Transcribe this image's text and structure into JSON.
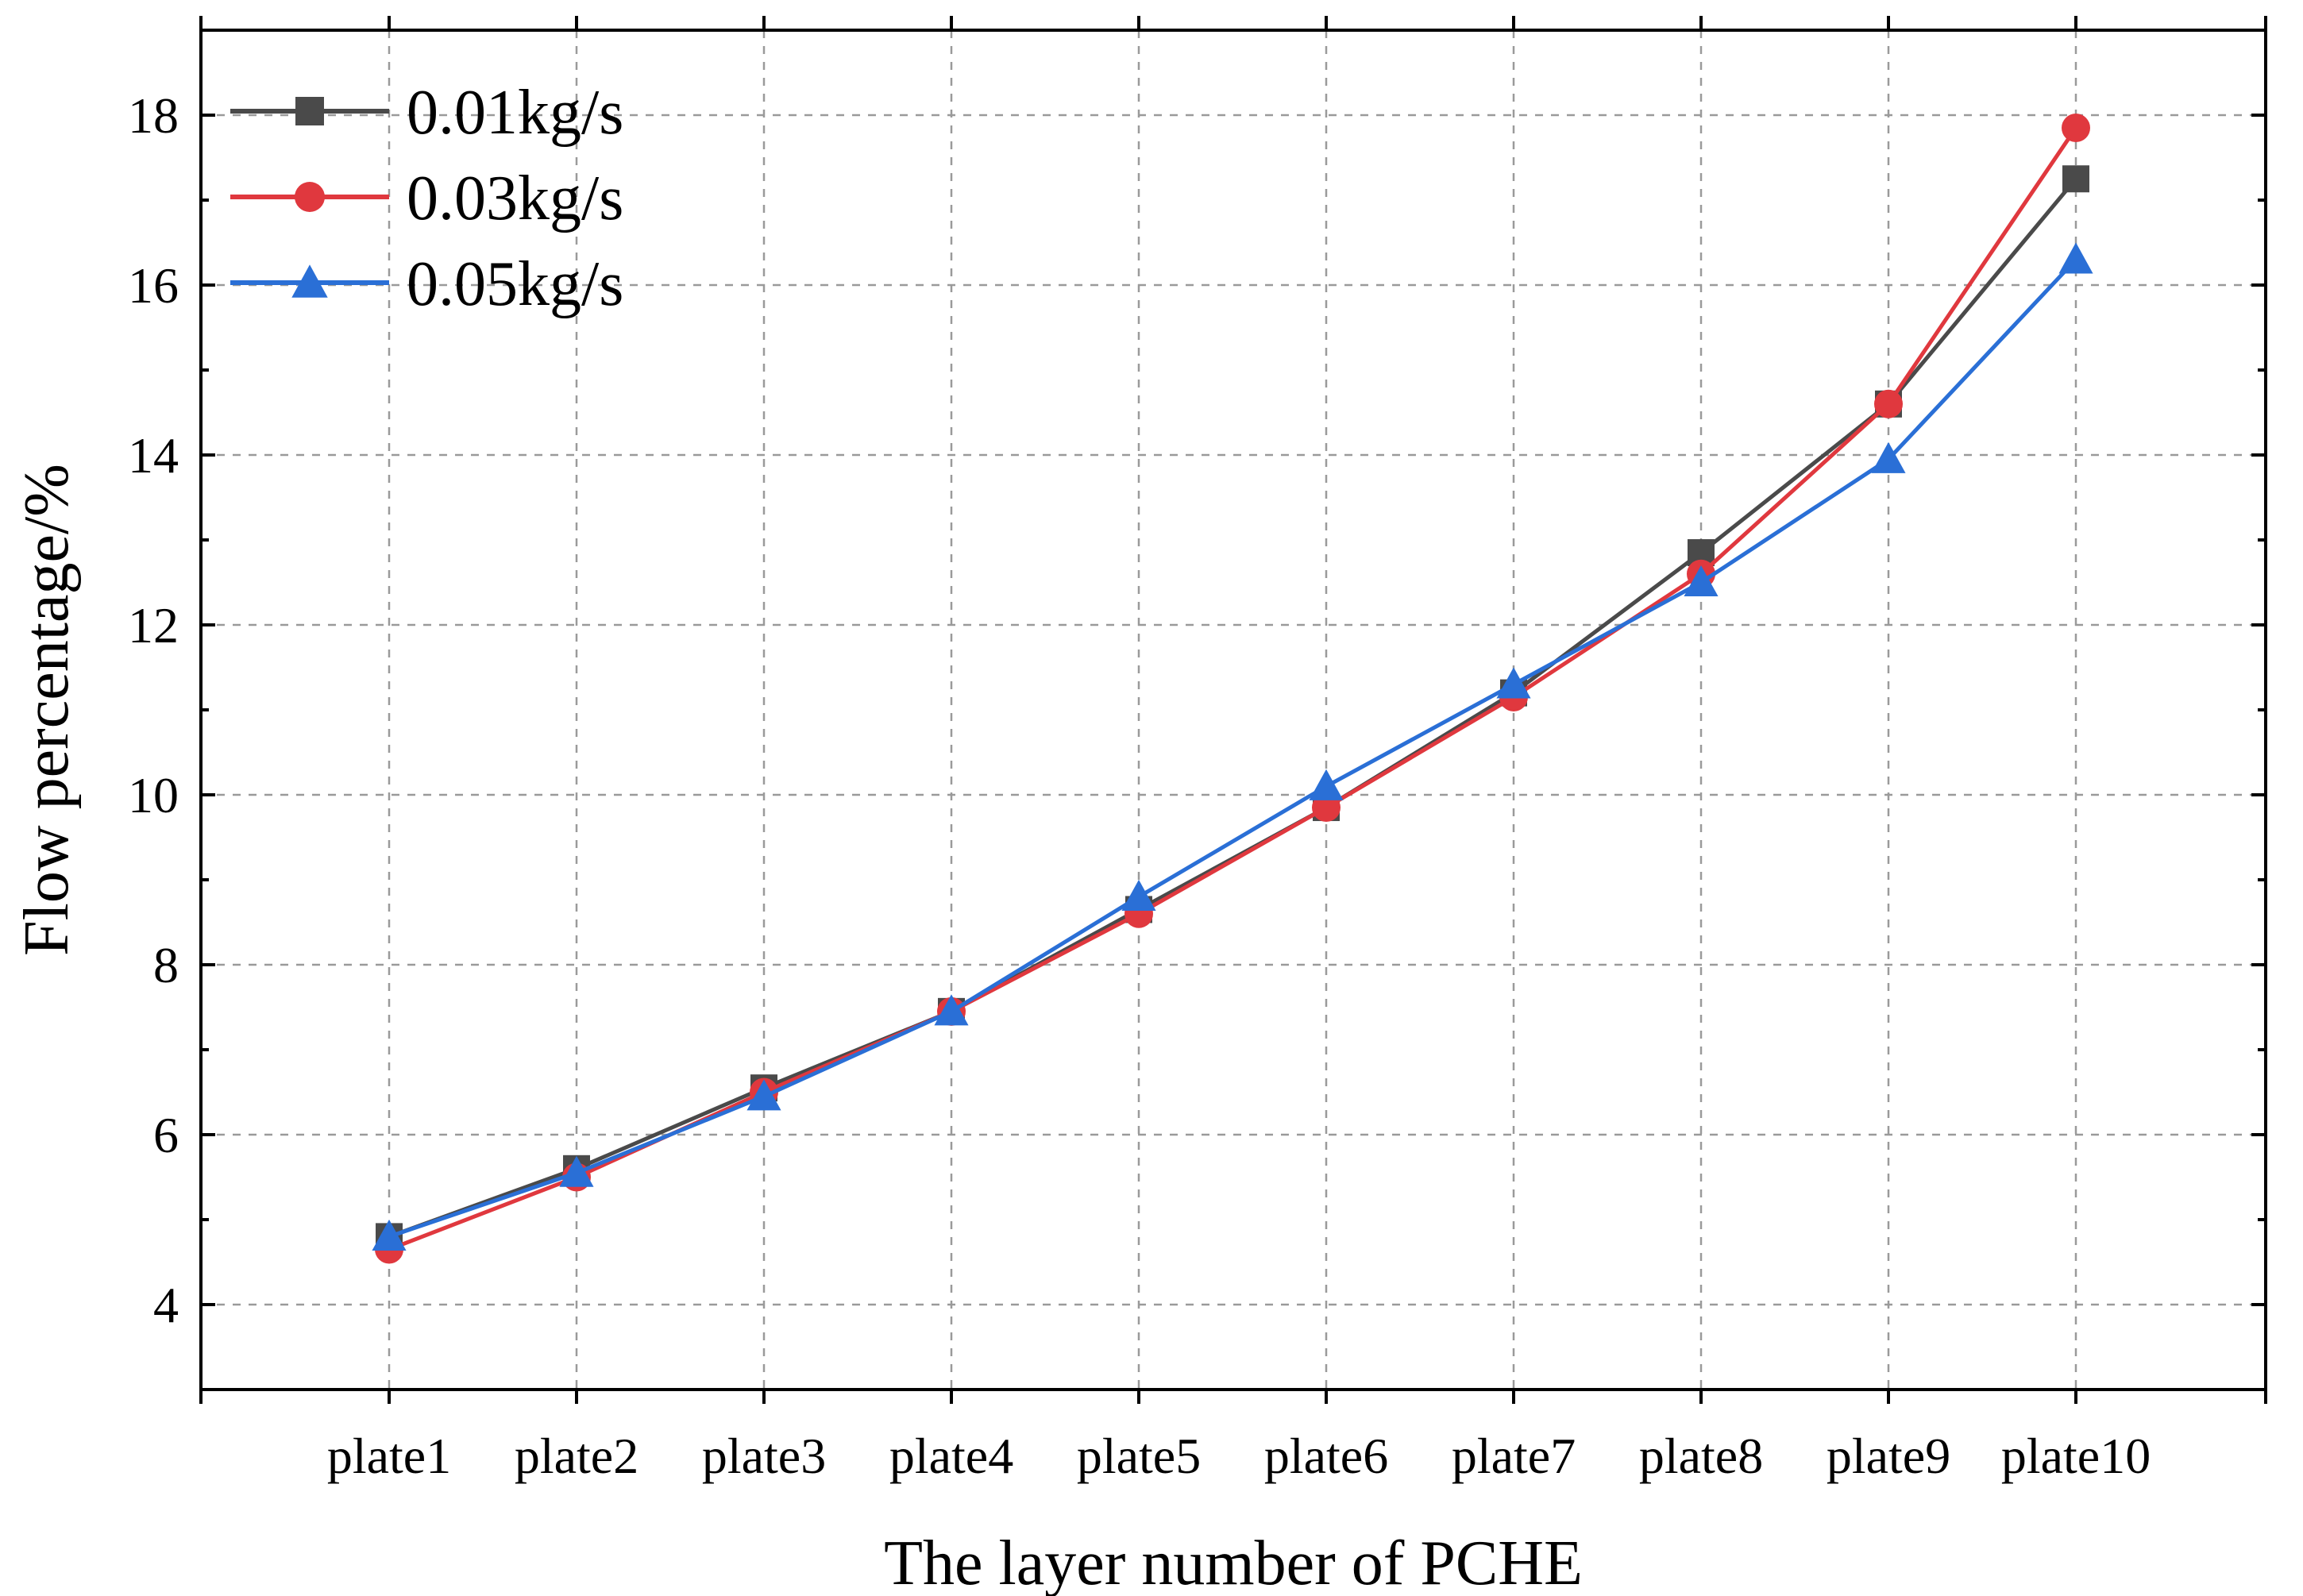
{
  "chart_data": {
    "type": "line",
    "title": "",
    "xlabel": "The layer number of PCHE",
    "ylabel": "Flow percentage/%",
    "categories": [
      "plate1",
      "plate2",
      "plate3",
      "plate4",
      "plate5",
      "plate6",
      "plate7",
      "plate8",
      "plate9",
      "plate10"
    ],
    "ylim": [
      3,
      19
    ],
    "yticks": [
      4,
      6,
      8,
      10,
      12,
      14,
      16,
      18
    ],
    "grid": true,
    "legend_position": "top-left",
    "series": [
      {
        "name": "0.01kg/s",
        "marker": "square",
        "color": "#4a4a4a",
        "values": [
          4.8,
          5.6,
          6.55,
          7.45,
          8.65,
          9.85,
          11.2,
          12.85,
          14.6,
          17.25
        ]
      },
      {
        "name": "0.03kg/s",
        "marker": "circle",
        "color": "#e0383e",
        "values": [
          4.65,
          5.5,
          6.5,
          7.45,
          8.6,
          9.85,
          11.15,
          12.6,
          14.6,
          17.85
        ]
      },
      {
        "name": "0.05kg/s",
        "marker": "triangle",
        "color": "#2a6fd6",
        "values": [
          4.8,
          5.55,
          6.45,
          7.45,
          8.8,
          10.1,
          11.3,
          12.5,
          13.95,
          16.3
        ]
      }
    ]
  }
}
